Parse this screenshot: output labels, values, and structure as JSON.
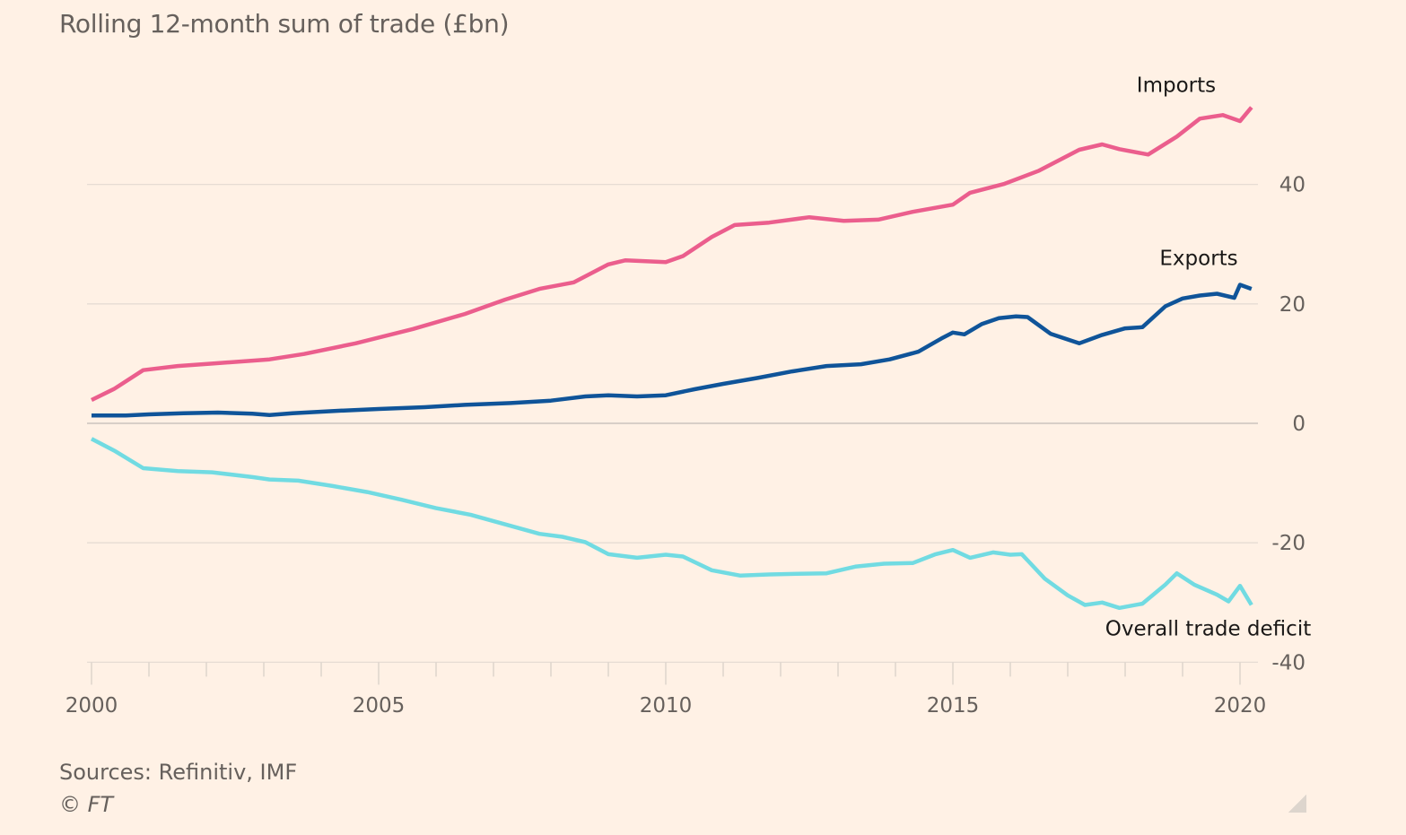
{
  "chart_data": {
    "type": "line",
    "title": "Rolling 12-month sum of trade (£bn)",
    "xlabel": "",
    "ylabel": "",
    "xlim": [
      2000,
      2020.25
    ],
    "ylim": [
      -40,
      55
    ],
    "x_ticks": [
      2000,
      2005,
      2010,
      2015,
      2020
    ],
    "x_tick_labels": [
      "2000",
      "2005",
      "2010",
      "2015",
      "2020"
    ],
    "y_ticks": [
      -40,
      -20,
      0,
      20,
      40
    ],
    "y_tick_labels": [
      "-40",
      "-20",
      "0",
      "20",
      "40"
    ],
    "grid": true,
    "y_axis_side": "right",
    "series": [
      {
        "name": "Imports",
        "color": "#eb5e8d",
        "label_anchor": [
          2018.2,
          55.5
        ],
        "points": [
          [
            2000.0,
            3.9
          ],
          [
            2000.4,
            5.8
          ],
          [
            2000.9,
            8.9
          ],
          [
            2001.5,
            9.6
          ],
          [
            2002.1,
            10.0
          ],
          [
            2003.1,
            10.7
          ],
          [
            2003.7,
            11.6
          ],
          [
            2004.6,
            13.4
          ],
          [
            2005.6,
            15.8
          ],
          [
            2006.5,
            18.3
          ],
          [
            2007.2,
            20.7
          ],
          [
            2007.8,
            22.5
          ],
          [
            2008.4,
            23.6
          ],
          [
            2009.0,
            26.6
          ],
          [
            2009.3,
            27.3
          ],
          [
            2010.0,
            27.0
          ],
          [
            2010.3,
            28.0
          ],
          [
            2010.8,
            31.2
          ],
          [
            2011.2,
            33.2
          ],
          [
            2011.8,
            33.6
          ],
          [
            2012.5,
            34.5
          ],
          [
            2013.1,
            33.9
          ],
          [
            2013.7,
            34.1
          ],
          [
            2014.3,
            35.4
          ],
          [
            2015.0,
            36.6
          ],
          [
            2015.3,
            38.6
          ],
          [
            2015.9,
            40.1
          ],
          [
            2016.5,
            42.3
          ],
          [
            2017.2,
            45.8
          ],
          [
            2017.6,
            46.7
          ],
          [
            2017.9,
            45.9
          ],
          [
            2018.4,
            45.0
          ],
          [
            2018.9,
            48.0
          ],
          [
            2019.3,
            51.0
          ],
          [
            2019.7,
            51.6
          ],
          [
            2020.0,
            50.6
          ],
          [
            2020.2,
            52.9
          ]
        ]
      },
      {
        "name": "Exports",
        "color": "#0f5499",
        "label_anchor": [
          2018.6,
          26.5
        ],
        "points": [
          [
            2000.0,
            1.3
          ],
          [
            2000.6,
            1.3
          ],
          [
            2001.0,
            1.5
          ],
          [
            2001.6,
            1.7
          ],
          [
            2002.2,
            1.8
          ],
          [
            2002.8,
            1.6
          ],
          [
            2003.1,
            1.4
          ],
          [
            2003.5,
            1.7
          ],
          [
            2004.3,
            2.1
          ],
          [
            2005.0,
            2.4
          ],
          [
            2005.8,
            2.7
          ],
          [
            2006.5,
            3.1
          ],
          [
            2007.3,
            3.4
          ],
          [
            2008.0,
            3.8
          ],
          [
            2008.6,
            4.5
          ],
          [
            2009.0,
            4.7
          ],
          [
            2009.5,
            4.5
          ],
          [
            2010.0,
            4.7
          ],
          [
            2010.5,
            5.7
          ],
          [
            2011.0,
            6.6
          ],
          [
            2011.6,
            7.6
          ],
          [
            2012.2,
            8.7
          ],
          [
            2012.8,
            9.6
          ],
          [
            2013.4,
            9.9
          ],
          [
            2013.9,
            10.7
          ],
          [
            2014.4,
            12.0
          ],
          [
            2014.8,
            14.2
          ],
          [
            2015.0,
            15.2
          ],
          [
            2015.2,
            14.9
          ],
          [
            2015.5,
            16.6
          ],
          [
            2015.8,
            17.6
          ],
          [
            2016.1,
            17.9
          ],
          [
            2016.3,
            17.8
          ],
          [
            2016.7,
            15.0
          ],
          [
            2017.2,
            13.4
          ],
          [
            2017.6,
            14.8
          ],
          [
            2018.0,
            15.9
          ],
          [
            2018.3,
            16.1
          ],
          [
            2018.7,
            19.6
          ],
          [
            2019.0,
            20.9
          ],
          [
            2019.3,
            21.4
          ],
          [
            2019.6,
            21.7
          ],
          [
            2019.9,
            21.0
          ],
          [
            2020.0,
            23.2
          ],
          [
            2020.2,
            22.5
          ]
        ]
      },
      {
        "name": "Overall trade deficit",
        "color": "#71dbe2",
        "label_anchor": [
          2018.2,
          -35.5
        ],
        "points": [
          [
            2000.0,
            -2.6
          ],
          [
            2000.4,
            -4.6
          ],
          [
            2000.9,
            -7.5
          ],
          [
            2001.5,
            -8.0
          ],
          [
            2002.1,
            -8.2
          ],
          [
            2002.8,
            -9.0
          ],
          [
            2003.1,
            -9.4
          ],
          [
            2003.6,
            -9.6
          ],
          [
            2004.2,
            -10.5
          ],
          [
            2004.8,
            -11.5
          ],
          [
            2005.4,
            -12.8
          ],
          [
            2006.0,
            -14.2
          ],
          [
            2006.6,
            -15.3
          ],
          [
            2007.2,
            -16.9
          ],
          [
            2007.8,
            -18.5
          ],
          [
            2008.2,
            -19.0
          ],
          [
            2008.6,
            -19.9
          ],
          [
            2009.0,
            -21.9
          ],
          [
            2009.5,
            -22.5
          ],
          [
            2010.0,
            -22.0
          ],
          [
            2010.3,
            -22.3
          ],
          [
            2010.8,
            -24.6
          ],
          [
            2011.3,
            -25.5
          ],
          [
            2011.8,
            -25.3
          ],
          [
            2012.3,
            -25.2
          ],
          [
            2012.8,
            -25.1
          ],
          [
            2013.3,
            -24.0
          ],
          [
            2013.8,
            -23.5
          ],
          [
            2014.3,
            -23.4
          ],
          [
            2014.7,
            -21.9
          ],
          [
            2015.0,
            -21.2
          ],
          [
            2015.3,
            -22.5
          ],
          [
            2015.7,
            -21.6
          ],
          [
            2016.0,
            -22.0
          ],
          [
            2016.2,
            -21.9
          ],
          [
            2016.6,
            -26.0
          ],
          [
            2017.0,
            -28.8
          ],
          [
            2017.3,
            -30.4
          ],
          [
            2017.6,
            -30.0
          ],
          [
            2017.9,
            -30.9
          ],
          [
            2018.3,
            -30.2
          ],
          [
            2018.7,
            -27.0
          ],
          [
            2018.9,
            -25.1
          ],
          [
            2019.2,
            -27.0
          ],
          [
            2019.6,
            -28.7
          ],
          [
            2019.8,
            -29.8
          ],
          [
            2020.0,
            -27.2
          ],
          [
            2020.2,
            -30.4
          ]
        ]
      }
    ],
    "annotations": [
      "Imports",
      "Exports",
      "Overall trade deficit"
    ]
  },
  "footer": {
    "source": "Sources: Refinitiv, IMF",
    "copyright": "© FT"
  },
  "colors": {
    "background": "#fff1e5",
    "gridline": "#e6dcd3",
    "text_muted": "#66605c",
    "text_dark": "#1a1817"
  }
}
